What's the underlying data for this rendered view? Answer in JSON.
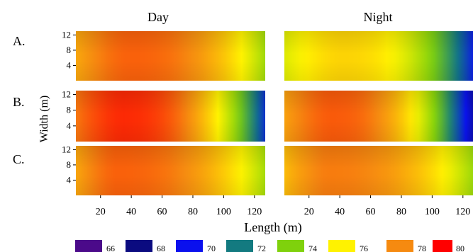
{
  "chart_data": {
    "type": "heatmap",
    "xlabel": "Length (m)",
    "ylabel": "Width (m)",
    "column_titles": [
      "Day",
      "Night"
    ],
    "row_labels": [
      "A.",
      "B.",
      "C."
    ],
    "x_ticks": [
      20,
      40,
      60,
      80,
      100,
      120
    ],
    "y_ticks": [
      4,
      8,
      12
    ],
    "xlim": [
      4,
      127
    ],
    "ylim": [
      0,
      13
    ],
    "legend": {
      "position": "bottom",
      "values": [
        66,
        68,
        70,
        72,
        74,
        76,
        78,
        80
      ],
      "colors": [
        "#4b0a8a",
        "#0b0b80",
        "#0a10ee",
        "#137a80",
        "#7fd10c",
        "#fff200",
        "#f68a10",
        "#ff0000"
      ]
    },
    "panels": [
      {
        "row": "A.",
        "column": "Day",
        "hot_x": 38,
        "peak": 78.6,
        "cool_end": 74.5
      },
      {
        "row": "A.",
        "column": "Night",
        "hot_x": 40,
        "peak": 76.6,
        "cool_end": 70.2
      },
      {
        "row": "B.",
        "column": "Day",
        "hot_x": 33,
        "peak": 79.4,
        "cool_end": 70.6
      },
      {
        "row": "B.",
        "column": "Night",
        "hot_x": 34,
        "peak": 78.7,
        "cool_end": 68.8
      },
      {
        "row": "C.",
        "column": "Day",
        "hot_x": 30,
        "peak": 78.6,
        "cool_end": 74.6
      },
      {
        "row": "C.",
        "column": "Night",
        "hot_x": 32,
        "peak": 78.2,
        "cool_end": 74.4
      }
    ]
  }
}
